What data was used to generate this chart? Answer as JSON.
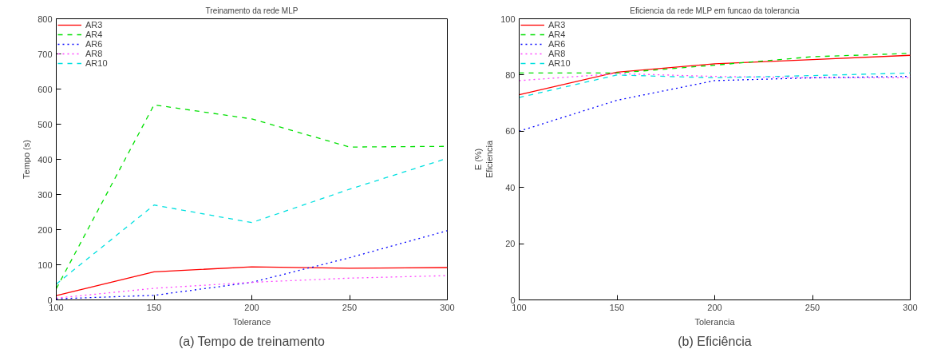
{
  "chart_data": [
    {
      "type": "line",
      "title": "Treinamento da rede MLP",
      "xlabel": "Tolerance",
      "ylabel": "Tempo (s)",
      "x": [
        100,
        150,
        200,
        250,
        300
      ],
      "xlim": [
        100,
        300
      ],
      "xticks": [
        100,
        150,
        200,
        250,
        300
      ],
      "ylim": [
        0,
        800
      ],
      "yticks": [
        0,
        100,
        200,
        300,
        400,
        500,
        600,
        700,
        800
      ],
      "grid": false,
      "legend": "top left",
      "annotations": [
        "(a) Tempo de treinamento"
      ],
      "series": [
        {
          "name": "AR3",
          "color": "#ff0000",
          "line_style": "solid",
          "values": [
            12,
            80,
            94,
            90,
            92
          ]
        },
        {
          "name": "AR4",
          "color": "#00e000",
          "line_style": "dashed",
          "values": [
            32,
            555,
            515,
            435,
            437
          ]
        },
        {
          "name": "AR6",
          "color": "#0000ff",
          "line_style": "dotted",
          "values": [
            3,
            13,
            50,
            120,
            197
          ]
        },
        {
          "name": "AR8",
          "color": "#ff40ff",
          "line_style": "dotted",
          "values": [
            5,
            33,
            50,
            62,
            69
          ]
        },
        {
          "name": "AR10",
          "color": "#00e0e0",
          "line_style": "dashed",
          "values": [
            45,
            270,
            220,
            315,
            403
          ]
        }
      ]
    },
    {
      "type": "line",
      "title": "Eficiencia da rede MLP em funcao da tolerancia",
      "xlabel": "Tolerancia",
      "ylabel": "E (%)\nEficiencia",
      "x": [
        100,
        150,
        200,
        250,
        300
      ],
      "xlim": [
        100,
        300
      ],
      "xticks": [
        100,
        150,
        200,
        250,
        300
      ],
      "ylim": [
        0,
        100
      ],
      "yticks": [
        0,
        20,
        40,
        60,
        80,
        100
      ],
      "grid": false,
      "legend": "top left",
      "annotations": [
        "(b) Eficiência"
      ],
      "series": [
        {
          "name": "AR3",
          "color": "#ff0000",
          "line_style": "solid",
          "values": [
            73,
            81,
            84,
            85.5,
            87
          ]
        },
        {
          "name": "AR4",
          "color": "#00e000",
          "line_style": "dashed",
          "values": [
            80.7,
            80.7,
            83.5,
            86.5,
            87.7
          ]
        },
        {
          "name": "AR6",
          "color": "#0000ff",
          "line_style": "dotted",
          "values": [
            60,
            71,
            78,
            79,
            79.5
          ]
        },
        {
          "name": "AR8",
          "color": "#ff40ff",
          "line_style": "dotted",
          "values": [
            78,
            80.5,
            79.5,
            79,
            79
          ]
        },
        {
          "name": "AR10",
          "color": "#00e0e0",
          "line_style": "dashed",
          "values": [
            72,
            80,
            79,
            79.8,
            80.7
          ]
        }
      ]
    }
  ]
}
